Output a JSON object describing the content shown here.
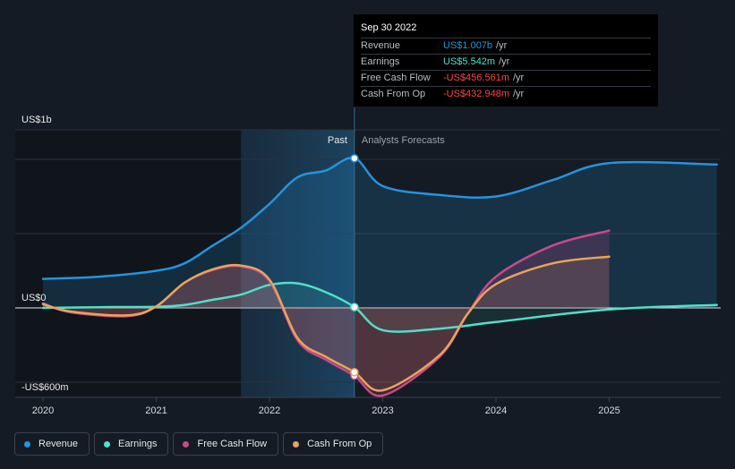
{
  "tooltip": {
    "date": "Sep 30 2022",
    "rows": [
      {
        "label": "Revenue",
        "value": "US$1.007b",
        "unit": "/yr",
        "color": "#2394df"
      },
      {
        "label": "Earnings",
        "value": "US$5.542m",
        "unit": "/yr",
        "color": "#50e0c8"
      },
      {
        "label": "Free Cash Flow",
        "value": "-US$456.561m",
        "unit": "/yr",
        "color": "#ff4444"
      },
      {
        "label": "Cash From Op",
        "value": "-US$432.948m",
        "unit": "/yr",
        "color": "#ff4444"
      }
    ]
  },
  "legend": [
    {
      "label": "Revenue",
      "color": "#2394df"
    },
    {
      "label": "Earnings",
      "color": "#50e0c8"
    },
    {
      "label": "Free Cash Flow",
      "color": "#c84a8a"
    },
    {
      "label": "Cash From Op",
      "color": "#e8a45a"
    }
  ],
  "chart_data": {
    "type": "line",
    "title": "",
    "ylabel_top": "US$1b",
    "ylabel_zero": "US$0",
    "ylabel_bottom": "-US$600m",
    "ylim_millions": [
      -600,
      1200
    ],
    "xlim": [
      2019.9,
      2025.95
    ],
    "x_ticks": [
      "2020",
      "2021",
      "2022",
      "2023",
      "2024",
      "2025"
    ],
    "past_label": "Past",
    "forecast_label": "Analysts Forecasts",
    "divider_x": 2022.75,
    "shade_start_x": 2021.75,
    "series": [
      {
        "name": "Revenue",
        "color": "#2394df",
        "points": [
          [
            2020.0,
            195
          ],
          [
            2020.5,
            210
          ],
          [
            2021.0,
            250
          ],
          [
            2021.25,
            300
          ],
          [
            2021.5,
            420
          ],
          [
            2021.75,
            540
          ],
          [
            2022.0,
            700
          ],
          [
            2022.25,
            880
          ],
          [
            2022.5,
            925
          ],
          [
            2022.75,
            1007
          ],
          [
            2023.0,
            820
          ],
          [
            2023.5,
            760
          ],
          [
            2024.0,
            750
          ],
          [
            2024.5,
            860
          ],
          [
            2025.0,
            975
          ],
          [
            2025.95,
            965
          ]
        ]
      },
      {
        "name": "Earnings",
        "color": "#50e0c8",
        "points": [
          [
            2020.0,
            0
          ],
          [
            2020.5,
            5
          ],
          [
            2021.0,
            8
          ],
          [
            2021.25,
            20
          ],
          [
            2021.5,
            55
          ],
          [
            2021.75,
            90
          ],
          [
            2022.0,
            155
          ],
          [
            2022.25,
            165
          ],
          [
            2022.5,
            105
          ],
          [
            2022.75,
            5.5
          ],
          [
            2023.0,
            -150
          ],
          [
            2023.5,
            -140
          ],
          [
            2024.0,
            -95
          ],
          [
            2025.0,
            -10
          ],
          [
            2025.95,
            20
          ]
        ]
      },
      {
        "name": "Free Cash Flow",
        "color": "#c84a8a",
        "points": [
          [
            2020.0,
            30
          ],
          [
            2020.25,
            -30
          ],
          [
            2020.75,
            -55
          ],
          [
            2021.0,
            10
          ],
          [
            2021.25,
            170
          ],
          [
            2021.5,
            255
          ],
          [
            2021.75,
            280
          ],
          [
            2022.0,
            180
          ],
          [
            2022.25,
            -220
          ],
          [
            2022.5,
            -350
          ],
          [
            2022.75,
            -456.6
          ],
          [
            2023.0,
            -590
          ],
          [
            2023.5,
            -330
          ],
          [
            2023.75,
            -40
          ],
          [
            2024.0,
            210
          ],
          [
            2024.5,
            420
          ],
          [
            2025.0,
            520
          ]
        ]
      },
      {
        "name": "Cash From Op",
        "color": "#e8a45a",
        "points": [
          [
            2020.0,
            25
          ],
          [
            2020.25,
            -25
          ],
          [
            2020.75,
            -50
          ],
          [
            2021.0,
            10
          ],
          [
            2021.25,
            170
          ],
          [
            2021.5,
            260
          ],
          [
            2021.75,
            285
          ],
          [
            2022.0,
            190
          ],
          [
            2022.25,
            -205
          ],
          [
            2022.5,
            -330
          ],
          [
            2022.75,
            -432.9
          ],
          [
            2023.0,
            -555
          ],
          [
            2023.5,
            -320
          ],
          [
            2023.75,
            -40
          ],
          [
            2024.0,
            160
          ],
          [
            2024.5,
            300
          ],
          [
            2025.0,
            345
          ]
        ]
      }
    ]
  }
}
